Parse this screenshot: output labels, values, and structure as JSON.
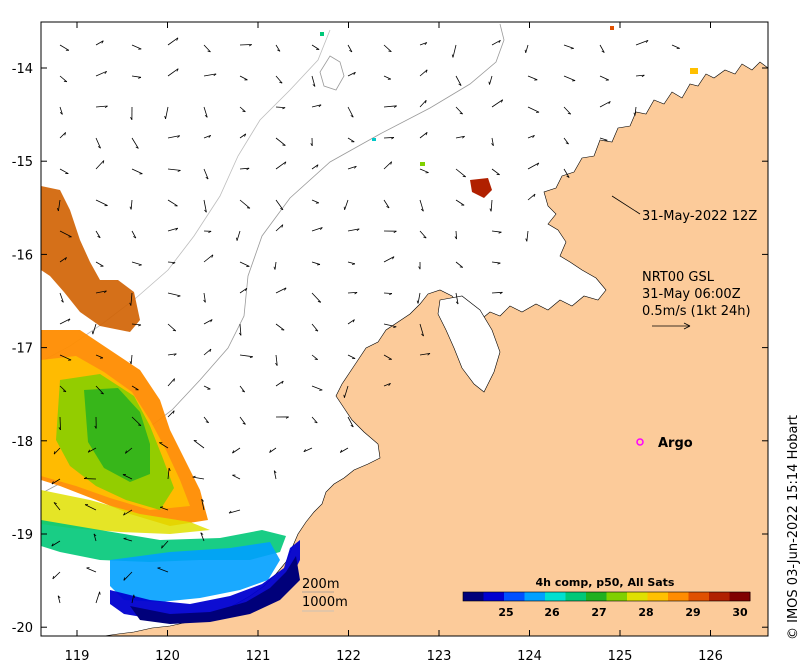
{
  "map": {
    "x_ticks": [
      "119",
      "120",
      "121",
      "122",
      "123",
      "124",
      "125",
      "126"
    ],
    "y_ticks": [
      "-14",
      "-15",
      "-16",
      "-17",
      "-18",
      "-19",
      "-20"
    ],
    "land_color": "#fccb9a",
    "sea_color": "#ffffff"
  },
  "annotations": {
    "track_date": "31-May-2022 12Z",
    "gsl_title": "NRT00 GSL",
    "gsl_time": "31-May 06:00Z",
    "gsl_scale": "0.5m/s (1kt 24h)",
    "argo_label": "Argo",
    "isobath_200": "200m",
    "isobath_1000": "1000m"
  },
  "colorbar": {
    "title": "4h comp, p50, All Sats",
    "ticks": [
      "25",
      "26",
      "27",
      "28",
      "29",
      "30"
    ],
    "colors": [
      "#00007a",
      "#0000d0",
      "#0050ff",
      "#00a0ff",
      "#00e0d0",
      "#00c878",
      "#20b020",
      "#80d000",
      "#e0e000",
      "#ffc000",
      "#ff8c00",
      "#e05000",
      "#b02000",
      "#800000"
    ]
  },
  "credit": "© IMOS 03-Jun-2022 15:14 Hobart"
}
